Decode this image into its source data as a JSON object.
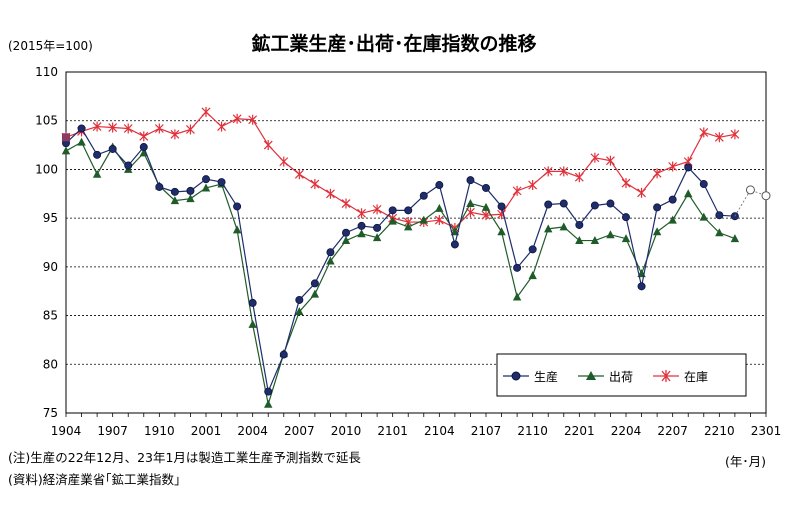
{
  "chart_data": {
    "type": "line",
    "title": "鉱工業生産･出荷･在庫指数の推移",
    "unit_label": "(2015年=100)",
    "x_unit_label": "(年･月)",
    "ylim": [
      75,
      110
    ],
    "y_ticks": [
      "75",
      "80",
      "85",
      "90",
      "95",
      "100",
      "105",
      "110"
    ],
    "x_tick_labels": [
      "1904",
      "1907",
      "1910",
      "2001",
      "2004",
      "2007",
      "2010",
      "2101",
      "2104",
      "2107",
      "2110",
      "2201",
      "2204",
      "2207",
      "2210",
      "2301"
    ],
    "grid": "horizontal dashed",
    "legend_position": "bottom-right",
    "x": [
      "1904",
      "1905",
      "1906",
      "1907",
      "1908",
      "1909",
      "1910",
      "1911",
      "1912",
      "2001",
      "2002",
      "2003",
      "2004",
      "2005",
      "2006",
      "2007",
      "2008",
      "2009",
      "2010",
      "2011",
      "2012",
      "2101",
      "2102",
      "2103",
      "2104",
      "2105",
      "2106",
      "2107",
      "2108",
      "2109",
      "2110",
      "2111",
      "2112",
      "2201",
      "2202",
      "2203",
      "2204",
      "2205",
      "2206",
      "2207",
      "2208",
      "2209",
      "2210",
      "2211",
      "2212",
      "2301"
    ],
    "series": [
      {
        "name": "生産",
        "color": "#1f2d6b",
        "marker": "circle",
        "values": [
          102.7,
          104.2,
          101.5,
          102.1,
          100.4,
          102.3,
          98.2,
          97.7,
          97.8,
          99.0,
          98.7,
          96.2,
          86.3,
          77.2,
          81.0,
          86.6,
          88.3,
          91.5,
          93.5,
          94.2,
          94.0,
          95.8,
          95.8,
          97.3,
          98.4,
          92.3,
          98.9,
          98.1,
          96.2,
          89.9,
          91.8,
          96.4,
          96.5,
          94.3,
          96.3,
          96.5,
          95.1,
          88.0,
          96.1,
          96.9,
          100.2,
          98.5,
          95.3,
          95.2,
          null,
          null
        ]
      },
      {
        "name": "出荷",
        "color": "#1f5c2a",
        "marker": "triangle",
        "values": [
          101.9,
          102.8,
          99.5,
          102.3,
          100.0,
          101.7,
          98.3,
          96.8,
          97.0,
          98.1,
          98.5,
          93.8,
          84.1,
          75.9,
          81.1,
          85.4,
          87.2,
          90.6,
          92.7,
          93.4,
          93.0,
          94.7,
          94.1,
          94.8,
          96.0,
          93.6,
          96.5,
          96.1,
          93.6,
          86.9,
          89.1,
          93.9,
          94.1,
          92.7,
          92.7,
          93.3,
          92.9,
          89.3,
          93.6,
          94.8,
          97.5,
          95.1,
          93.5,
          92.9,
          null,
          null
        ]
      },
      {
        "name": "在庫",
        "color": "#e0303a",
        "marker": "asterisk",
        "values": [
          103.3,
          103.9,
          104.4,
          104.3,
          104.2,
          103.4,
          104.2,
          103.6,
          104.1,
          105.9,
          104.4,
          105.2,
          105.1,
          102.5,
          100.8,
          99.5,
          98.5,
          97.5,
          96.5,
          95.5,
          95.9,
          95.0,
          94.6,
          94.6,
          94.8,
          94.0,
          95.6,
          95.3,
          95.4,
          97.8,
          98.4,
          99.8,
          99.8,
          99.2,
          101.2,
          100.9,
          98.6,
          97.6,
          99.6,
          100.3,
          100.8,
          103.8,
          103.3,
          103.6,
          null,
          null
        ]
      },
      {
        "name": "生産予測",
        "color": "#555555",
        "marker": "open-circle",
        "values": [
          null,
          null,
          null,
          null,
          null,
          null,
          null,
          null,
          null,
          null,
          null,
          null,
          null,
          null,
          null,
          null,
          null,
          null,
          null,
          null,
          null,
          null,
          null,
          null,
          null,
          null,
          null,
          null,
          null,
          null,
          null,
          null,
          null,
          null,
          null,
          null,
          null,
          null,
          null,
          null,
          null,
          null,
          null,
          95.2,
          97.9,
          97.3
        ]
      }
    ],
    "first_point_marker_color": "#8b3a62"
  },
  "footnotes": {
    "note": "(注)生産の22年12月、23年1月は製造工業生産予測指数で延長",
    "source": "(資料)経済産業省｢鉱工業指数｣"
  },
  "legend": {
    "items": [
      "生産",
      "出荷",
      "在庫"
    ]
  }
}
